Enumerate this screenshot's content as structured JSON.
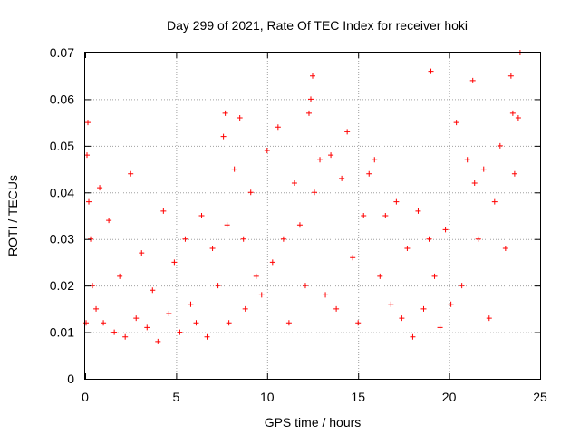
{
  "chart_data": {
    "type": "scatter",
    "title": "Day 299 of 2021, Rate Of TEC Index for receiver hoki",
    "xlabel": "GPS time / hours",
    "ylabel": "ROTI / TECUs",
    "xlim": [
      0,
      25
    ],
    "ylim": [
      0,
      0.07
    ],
    "x_ticks": [
      "0",
      "5",
      "10",
      "15",
      "20",
      "25"
    ],
    "y_ticks": [
      "0",
      "0.01",
      "0.02",
      "0.03",
      "0.04",
      "0.05",
      "0.06",
      "0.07"
    ],
    "grid": true,
    "marker": "plus",
    "point_color": "#ff0000",
    "series": [
      {
        "x": [
          0.05,
          0.1,
          0.15,
          0.2,
          0.3,
          0.4,
          0.6,
          0.8,
          1.0,
          1.3,
          1.6,
          1.9,
          2.2,
          2.5,
          2.8,
          3.1,
          3.4,
          3.7,
          4.0,
          4.3,
          4.6,
          4.9,
          5.2,
          5.5,
          5.8,
          6.1,
          6.4,
          6.7,
          7.0,
          7.3,
          7.6,
          7.7,
          7.8,
          7.9,
          8.2,
          8.5,
          8.7,
          8.8,
          9.1,
          9.4,
          9.7,
          10.0,
          10.3,
          10.6,
          10.9,
          11.2,
          11.5,
          11.8,
          12.1,
          12.3,
          12.4,
          12.5,
          12.6,
          12.9,
          13.2,
          13.5,
          13.8,
          14.1,
          14.4,
          14.7,
          15.0,
          15.3,
          15.6,
          15.9,
          16.2,
          16.5,
          16.8,
          17.1,
          17.4,
          17.7,
          18.0,
          18.3,
          18.6,
          18.9,
          19.0,
          19.2,
          19.5,
          19.8,
          20.1,
          20.4,
          20.7,
          21.0,
          21.3,
          21.4,
          21.6,
          21.9,
          22.2,
          22.5,
          22.8,
          23.1,
          23.4,
          23.5,
          23.6,
          23.8,
          23.9
        ],
        "y": [
          0.012,
          0.048,
          0.055,
          0.038,
          0.03,
          0.02,
          0.015,
          0.041,
          0.012,
          0.034,
          0.01,
          0.022,
          0.009,
          0.044,
          0.013,
          0.027,
          0.011,
          0.019,
          0.008,
          0.036,
          0.014,
          0.025,
          0.01,
          0.03,
          0.016,
          0.012,
          0.035,
          0.009,
          0.028,
          0.02,
          0.052,
          0.057,
          0.033,
          0.012,
          0.045,
          0.056,
          0.03,
          0.015,
          0.04,
          0.022,
          0.018,
          0.049,
          0.025,
          0.054,
          0.03,
          0.012,
          0.042,
          0.033,
          0.02,
          0.057,
          0.06,
          0.065,
          0.04,
          0.047,
          0.018,
          0.048,
          0.015,
          0.043,
          0.053,
          0.026,
          0.012,
          0.035,
          0.044,
          0.047,
          0.022,
          0.035,
          0.016,
          0.038,
          0.013,
          0.028,
          0.009,
          0.036,
          0.015,
          0.03,
          0.066,
          0.022,
          0.011,
          0.032,
          0.016,
          0.055,
          0.02,
          0.047,
          0.064,
          0.042,
          0.03,
          0.045,
          0.013,
          0.038,
          0.05,
          0.028,
          0.065,
          0.057,
          0.044,
          0.056,
          0.07
        ]
      }
    ]
  }
}
